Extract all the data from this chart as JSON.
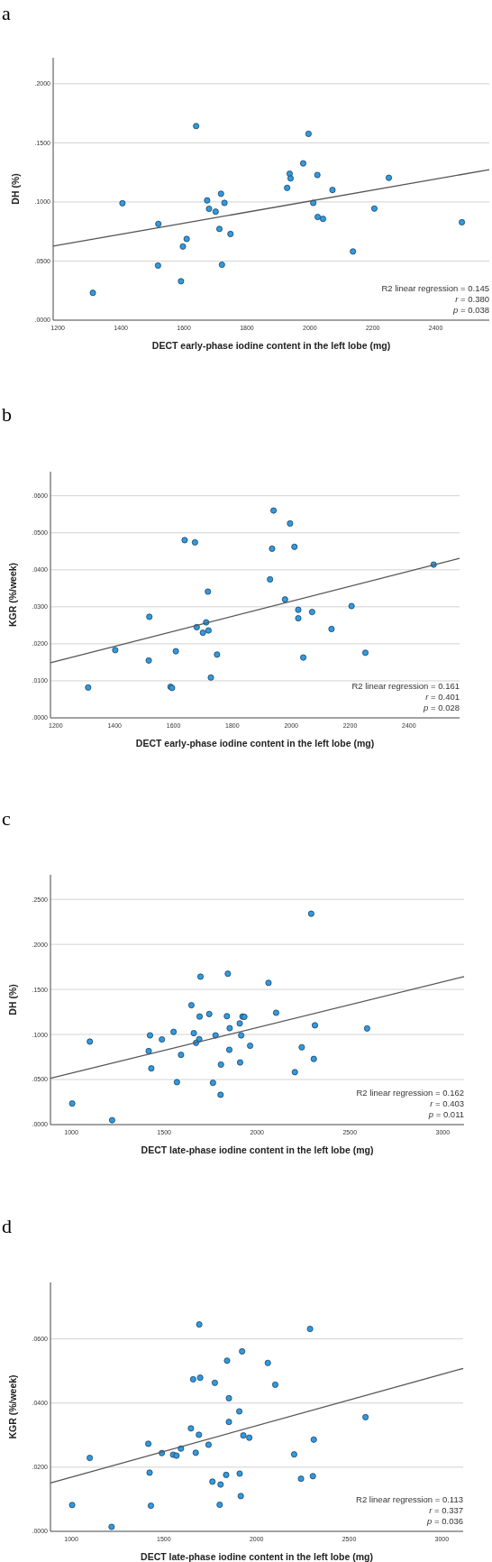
{
  "chart_data": [
    {
      "type": "scatter",
      "title": "a",
      "xlabel": "DECT early-phase iodine content in the left lobe (mg)",
      "ylabel": "DH (%)",
      "xlim": [
        1185,
        2570
      ],
      "ylim": [
        0,
        0.222
      ],
      "xticks": [
        1200,
        1400,
        1600,
        1800,
        2000,
        2200,
        2400
      ],
      "yticks": [
        {
          "value": 0,
          "label": ".0000"
        },
        {
          "value": 0.05,
          "label": ".0500"
        },
        {
          "value": 0.1,
          "label": ".1000"
        },
        {
          "value": 0.15,
          "label": ".1500"
        },
        {
          "value": 0.2,
          "label": ".2000"
        }
      ],
      "grid": "y",
      "marker": "circle",
      "annotations": [
        "R2 linear regression = 0.145",
        "r = 0.380",
        "p = 0.038"
      ],
      "series": [
        {
          "color": "#2f9be0",
          "x": [
            1311,
            1405,
            1519,
            1518,
            1591,
            1597,
            1609,
            1639,
            1674,
            1680,
            1701,
            1718,
            1729,
            1713,
            1721,
            1748,
            1928,
            1936,
            1939,
            1979,
            1996,
            2011,
            2024,
            2025,
            2042,
            2072,
            2137,
            2205,
            2251,
            2483
          ],
          "values": [
            0.0231,
            0.0989,
            0.0814,
            0.0462,
            0.0329,
            0.0623,
            0.0687,
            0.1642,
            0.1013,
            0.0942,
            0.0918,
            0.1069,
            0.0992,
            0.0772,
            0.0469,
            0.0729,
            0.1119,
            0.1239,
            0.1199,
            0.1326,
            0.1576,
            0.0992,
            0.1228,
            0.0873,
            0.0857,
            0.1101,
            0.0581,
            0.0944,
            0.1204,
            0.0828
          ]
        },
        {
          "type": "line",
          "color": "#555555",
          "marker": "none",
          "x": [
            1185,
            2570
          ],
          "values": [
            0.0626,
            0.1273
          ]
        }
      ]
    },
    {
      "type": "scatter",
      "title": "b",
      "xlabel": "DECT early-phase iodine content in the left lobe (mg)",
      "ylabel": "KGR (%/week)",
      "xlim": [
        1182,
        2572
      ],
      "ylim": [
        0,
        0.0665
      ],
      "xticks": [
        1200,
        1400,
        1600,
        1800,
        2000,
        2200,
        2400
      ],
      "yticks": [
        {
          "value": 0,
          "label": ".0000"
        },
        {
          "value": 0.01,
          "label": ".0100"
        },
        {
          "value": 0.02,
          "label": ".0200"
        },
        {
          "value": 0.03,
          "label": ".0300"
        },
        {
          "value": 0.04,
          "label": ".0400"
        },
        {
          "value": 0.05,
          "label": ".0500"
        },
        {
          "value": 0.06,
          "label": ".0600"
        }
      ],
      "grid": "y",
      "marker": "circle",
      "annotations": [
        "R2 linear regression = 0.161",
        "r = 0.401",
        "p = 0.028"
      ],
      "series": [
        {
          "color": "#2f9be0",
          "x": [
            1310,
            1402,
            1518,
            1516,
            1590,
            1595,
            1608,
            1638,
            1673,
            1679,
            1700,
            1711,
            1717,
            1719,
            1727,
            1748,
            1928,
            1935,
            1940,
            1979,
            1996,
            2011,
            2024,
            2024,
            2041,
            2071,
            2137,
            2205,
            2252,
            2484
          ],
          "values": [
            0.0082,
            0.0183,
            0.0273,
            0.0155,
            0.0084,
            0.0081,
            0.018,
            0.048,
            0.0474,
            0.0245,
            0.023,
            0.0258,
            0.0341,
            0.0236,
            0.0109,
            0.0171,
            0.0374,
            0.0457,
            0.056,
            0.032,
            0.0525,
            0.0462,
            0.0292,
            0.0269,
            0.0163,
            0.0286,
            0.024,
            0.0302,
            0.0176,
            0.0414
          ]
        },
        {
          "type": "line",
          "color": "#555555",
          "marker": "none",
          "x": [
            1182,
            2572
          ],
          "values": [
            0.0149,
            0.0431
          ]
        }
      ]
    },
    {
      "type": "scatter",
      "title": "c",
      "xlabel": "DECT late-phase iodine content in the left lobe (mg)",
      "ylabel": "DH (%)",
      "xlim": [
        888,
        3115
      ],
      "ylim": [
        0,
        0.2772
      ],
      "xticks": [
        1000,
        1500,
        2000,
        2500,
        3000
      ],
      "yticks": [
        {
          "value": 0,
          "label": ".0000"
        },
        {
          "value": 0.05,
          "label": ".0500"
        },
        {
          "value": 0.1,
          "label": ".1000"
        },
        {
          "value": 0.15,
          "label": ".1500"
        },
        {
          "value": 0.2,
          "label": ".2000"
        },
        {
          "value": 0.25,
          "label": ".2500"
        }
      ],
      "grid": "y",
      "marker": "circle",
      "annotations": [
        "R2 linear regression = 0.162",
        "r = 0.403",
        "p = 0.011"
      ],
      "series": [
        {
          "color": "#2f9be0",
          "x": [
            1005,
            1100,
            1220,
            1417,
            1424,
            1431,
            1488,
            1551,
            1569,
            1591,
            1647,
            1660,
            1672,
            1689,
            1691,
            1696,
            1743,
            1763,
            1777,
            1804,
            1806,
            1838,
            1843,
            1851,
            1853,
            1907,
            1909,
            1915,
            1922,
            1932,
            1963,
            2062,
            2103,
            2204,
            2241,
            2306,
            2312,
            2292,
            2593
          ],
          "values": [
            0.0234,
            0.0921,
            0.0049,
            0.0816,
            0.099,
            0.0624,
            0.0945,
            0.1029,
            0.0471,
            0.0774,
            0.1325,
            0.1015,
            0.0907,
            0.0948,
            0.1199,
            0.1642,
            0.1227,
            0.0464,
            0.099,
            0.0331,
            0.0666,
            0.1203,
            0.1674,
            0.083,
            0.107,
            0.1123,
            0.069,
            0.099,
            0.1199,
            0.1196,
            0.0875,
            0.1573,
            0.1241,
            0.0582,
            0.0858,
            0.0729,
            0.1102,
            0.234,
            0.1067
          ]
        },
        {
          "type": "line",
          "color": "#555555",
          "marker": "none",
          "x": [
            888,
            3115
          ],
          "values": [
            0.0513,
            0.1642
          ]
        }
      ]
    },
    {
      "type": "scatter",
      "title": "d",
      "xlabel": "DECT late-phase iodine content in the left lobe (mg)",
      "ylabel": "KGR (%/week)",
      "xlim": [
        888,
        3115
      ],
      "ylim": [
        0,
        0.0776
      ],
      "xticks": [
        1000,
        1500,
        2000,
        2500,
        3000
      ],
      "yticks": [
        {
          "value": 0,
          "label": ".0000"
        },
        {
          "value": 0.02,
          "label": ".0200"
        },
        {
          "value": 0.04,
          "label": ".0400"
        },
        {
          "value": 0.06,
          "label": ".0600"
        }
      ],
      "grid": "y",
      "marker": "circle",
      "annotations": [
        "R2 linear regression = 0.113",
        "r = 0.337",
        "p = 0.036"
      ],
      "series": [
        {
          "color": "#2f9be0",
          "x": [
            1005,
            1100,
            1218,
            1416,
            1423,
            1430,
            1489,
            1550,
            1568,
            1592,
            1646,
            1658,
            1672,
            1689,
            1691,
            1696,
            1741,
            1762,
            1775,
            1801,
            1806,
            1836,
            1841,
            1851,
            1851,
            1907,
            1909,
            1915,
            1922,
            1929,
            1961,
            2061,
            2101,
            2203,
            2240,
            2289,
            2304,
            2309,
            2588
          ],
          "values": [
            0.0082,
            0.0229,
            0.0014,
            0.0273,
            0.0183,
            0.008,
            0.0244,
            0.0239,
            0.0236,
            0.0258,
            0.0321,
            0.0474,
            0.0245,
            0.0301,
            0.0645,
            0.0479,
            0.027,
            0.0155,
            0.0463,
            0.0083,
            0.0146,
            0.0176,
            0.0532,
            0.0415,
            0.0341,
            0.0374,
            0.018,
            0.011,
            0.0561,
            0.0299,
            0.0292,
            0.0525,
            0.0457,
            0.024,
            0.0164,
            0.0631,
            0.0172,
            0.0286,
            0.0356
          ]
        },
        {
          "type": "line",
          "color": "#555555",
          "marker": "none",
          "x": [
            888,
            3115
          ],
          "values": [
            0.0151,
            0.0508
          ]
        }
      ]
    }
  ]
}
